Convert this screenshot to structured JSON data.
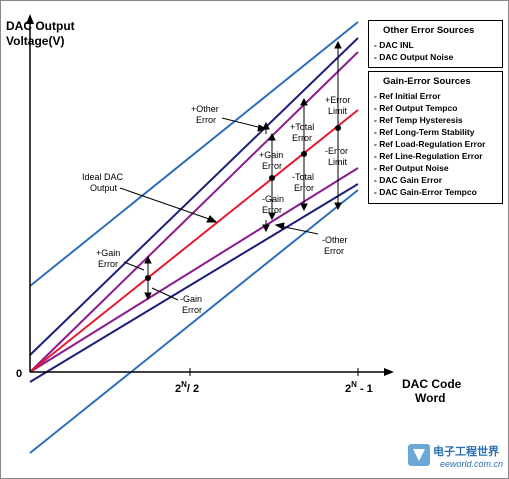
{
  "axes": {
    "y_title_line1": "DAC Output",
    "y_title_line2": "Voltage(V)",
    "x_title_line1": "DAC Code",
    "x_title_line2": "Word",
    "origin_label": "0",
    "tick_mid_base": "2",
    "tick_mid_sup": "N",
    "tick_mid_rest": "/ 2",
    "tick_end_base": "2",
    "tick_end_sup": "N",
    "tick_end_rest": " - 1"
  },
  "labels": {
    "ideal_line1": "Ideal DAC",
    "ideal_line2": "Output",
    "plus_other_line1": "+Other",
    "plus_other_line2": "Error",
    "plus_gain_upper_line1": "+Gain",
    "plus_gain_upper_line2": "Error",
    "plus_total_line1": "+Total",
    "plus_total_line2": "Error",
    "plus_error_limit_line1": "+Error",
    "plus_error_limit_line2": "Limit",
    "minus_error_limit_line1": "-Error",
    "minus_error_limit_line2": "Limit",
    "minus_total_line1": "-Total",
    "minus_total_line2": "Error",
    "minus_gain_upper_line1": "-Gain",
    "minus_gain_upper_line2": "Error",
    "minus_other_line1": "-Other",
    "minus_other_line2": "Error",
    "plus_gain_lower_line1": "+Gain",
    "plus_gain_lower_line2": "Error",
    "minus_gain_lower_line1": "-Gain",
    "minus_gain_lower_line2": "Error"
  },
  "other_sources": {
    "title": "Other Error Sources",
    "items": [
      "- DAC INL",
      "- DAC Output Noise"
    ]
  },
  "gain_sources": {
    "title": "Gain-Error Sources",
    "items": [
      "- Ref Initial Error",
      "- Ref Output Tempco",
      "- Ref Temp Hysteresis",
      "- Ref Long-Term Stability",
      "- Ref Load-Regulation Error",
      "- Ref Line-Regulation Error",
      "- Ref Output Noise",
      "- DAC Gain Error",
      "- DAC Gain-Error Tempco"
    ]
  },
  "watermark": {
    "cn": "电子工程世界",
    "en": "eeworld.com.cn"
  },
  "colors": {
    "ideal": "#e8192c",
    "gain_error": "#8b1a8f",
    "total_error": "#1c1f7a",
    "error_limit": "#2c6fb8"
  }
}
